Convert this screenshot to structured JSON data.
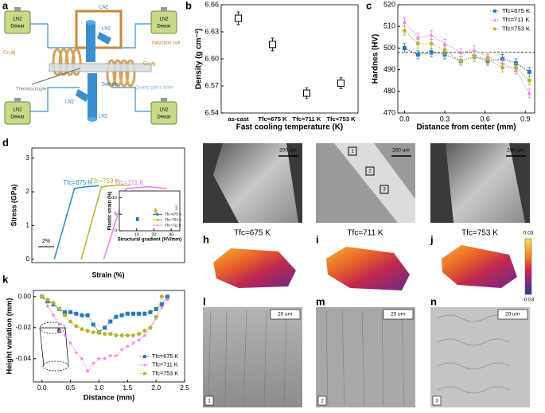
{
  "panel_labels": [
    "a",
    "b",
    "c",
    "d",
    "e",
    "f",
    "g",
    "h",
    "i",
    "j",
    "k",
    "l",
    "m",
    "n"
  ],
  "diagram": {
    "dewars": [
      {
        "top": "LN2",
        "bottom": "Dewar"
      },
      {
        "top": "LN2",
        "bottom": "Dewar"
      },
      {
        "top": "LN2",
        "bottom": "Dewar"
      },
      {
        "top": "LN2",
        "bottom": "Dewar"
      }
    ],
    "pipes": [
      "LN2",
      "LN2",
      "LN2",
      "LN2"
    ],
    "induction_coil": "Induction coil",
    "cu_jig": [
      "Cu jig",
      "Cu jig"
    ],
    "thermocouple": "Thermocouple",
    "sample": "Sample",
    "quartz_tube": "Quartz glass tube"
  },
  "micrographs": {
    "captions": [
      "Tfc=675 K",
      "Tfc=711 K",
      "Tfc=753 K"
    ],
    "scale_bars": [
      "200 um",
      "200 um",
      "200 um",
      "20 um",
      "20 um",
      "20 um"
    ],
    "regions": [
      "1",
      "2",
      "3"
    ],
    "region_tags": [
      "1",
      "2",
      "3"
    ],
    "colorbar_labels": [
      "0.03",
      "-0.03"
    ]
  },
  "chart_data": [
    {
      "type": "scatter",
      "categories": [
        "as-cast",
        "Tfc=675 K",
        "Tfc=711 K",
        "Tfc=753 K"
      ],
      "values": [
        6.645,
        6.616,
        6.562,
        6.573
      ],
      "errors": [
        0.007,
        0.007,
        0.006,
        0.006
      ],
      "marker": "open-square",
      "color": "#000000",
      "ylim": [
        6.54,
        6.66
      ],
      "yticks": [
        6.54,
        6.57,
        {
          "value": 6.6,
          "label": "6.60"
        },
        6.63,
        6.66
      ],
      "ylabel": "Density (g cm⁻³)",
      "xlabel": "Fast cooling temperature (K)"
    },
    {
      "type": "line",
      "line_style": "dotted",
      "legend": "upper right",
      "reference_line": 498,
      "xlim": [
        -0.05,
        0.97
      ],
      "ylim": [
        470,
        520
      ],
      "xticks": [
        {
          "value": 0,
          "label": "0.0"
        },
        0.3,
        0.6,
        0.9
      ],
      "yticks": [
        470,
        480,
        490,
        500,
        510,
        520
      ],
      "xlabel": "Distance from center (mm)",
      "ylabel": "Hardnes (HV)",
      "series": [
        {
          "name": "Tfc=675 K",
          "color": "#2a78b8",
          "marker": "square",
          "x": [
            0,
            0.1,
            0.2,
            0.3,
            0.42,
            0.52,
            0.62,
            0.73,
            0.83,
            0.93
          ],
          "values": [
            500,
            497,
            498,
            497,
            494,
            496,
            494,
            495,
            493,
            489
          ],
          "errors": [
            2,
            2,
            2,
            2,
            2,
            2,
            2,
            2,
            2,
            2
          ]
        },
        {
          "name": "Tfc=711 K",
          "color": "#f07cf0",
          "marker": "triangle",
          "x": [
            0,
            0.1,
            0.2,
            0.3,
            0.42,
            0.52,
            0.62,
            0.73,
            0.83,
            0.93
          ],
          "values": [
            512,
            505,
            506,
            502,
            498,
            499,
            496,
            493,
            490,
            479
          ],
          "errors": [
            2,
            2,
            2,
            2,
            2,
            2,
            2,
            2,
            2,
            2
          ]
        },
        {
          "name": "Tfc=753 K",
          "color": "#b5b52a",
          "marker": "circle",
          "x": [
            0,
            0.1,
            0.2,
            0.3,
            0.42,
            0.52,
            0.62,
            0.73,
            0.83,
            0.93
          ],
          "values": [
            508,
            502,
            502,
            499,
            494,
            496,
            495,
            491,
            491,
            485
          ],
          "errors": [
            2,
            2,
            2,
            2,
            2,
            2,
            2,
            2,
            2,
            2
          ]
        }
      ]
    },
    {
      "type": "line",
      "line_style": "solid",
      "legend": "inline",
      "scale_bar": "2%",
      "xlim": [
        0,
        34
      ],
      "ylim": [
        -0.1,
        3.3
      ],
      "xticks": [],
      "yticks": [
        0,
        1,
        2,
        3
      ],
      "xlabel": "Strain (%)",
      "ylabel": "Stress (GPa)",
      "series": [
        {
          "name": "Tfc=675 K",
          "color": "#1e8fc8",
          "marker": "none",
          "x": [
            5,
            9.5,
            12,
            15
          ],
          "values": [
            0,
            2.1,
            2.15,
            2.18
          ]
        },
        {
          "name": "Tfc=753 K",
          "color": "#b5b52a",
          "marker": "none",
          "x": [
            11,
            15.5,
            19,
            22
          ],
          "values": [
            0,
            2.15,
            2.2,
            2.2
          ]
        },
        {
          "name": "Tfc=711 K",
          "color": "#f07cf0",
          "marker": "none",
          "x": [
            16,
            21,
            26,
            30
          ],
          "values": [
            0,
            2.1,
            2.15,
            2.1
          ]
        }
      ]
    },
    {
      "type": "scatter",
      "legend": "lower right",
      "xlim": [
        0,
        35
      ],
      "ylim": [
        0,
        12
      ],
      "xticks": [
        10,
        20,
        30
      ],
      "yticks": [
        0,
        5,
        10
      ],
      "xlabel": "Structural gradient (HV/mm)",
      "ylabel": "Plastic strain (%)",
      "series": [
        {
          "name": "Tfc=675 K",
          "color": "#2a78b8",
          "marker": "square",
          "x": [
            10.5
          ],
          "values": [
            3.5
          ],
          "errors": [
            0.5
          ]
        },
        {
          "name": "Tfc=753 K",
          "color": "#b5b52a",
          "marker": "circle",
          "x": [
            21
          ],
          "values": [
            6
          ],
          "errors": [
            0.7
          ]
        },
        {
          "name": "Tfc=711 K",
          "color": "#f07cf0",
          "marker": "star",
          "x": [
            33
          ],
          "values": [
            7
          ],
          "errors": [
            0.6
          ]
        }
      ]
    },
    {
      "type": "line",
      "line_style": "dotted",
      "legend": "lower right",
      "annotation": "θ",
      "xlim": [
        -0.15,
        2.5
      ],
      "ylim": [
        -0.055,
        0.004
      ],
      "xticks": [
        {
          "value": 0,
          "label": "0.0"
        },
        0.5,
        {
          "value": 1,
          "label": "1.0"
        },
        1.5,
        {
          "value": 2,
          "label": "2.0"
        },
        2.5
      ],
      "yticks": [
        {
          "value": 0,
          "label": "0.00"
        },
        -0.02,
        -0.04
      ],
      "xlabel": "Distance (mm)",
      "ylabel": "Height variation (mm)",
      "series": [
        {
          "name": "Tfc=675 K",
          "color": "#2a78b8",
          "marker": "square",
          "x": [
            0,
            0.1,
            0.2,
            0.3,
            0.4,
            0.5,
            0.6,
            0.7,
            0.8,
            0.9,
            1.0,
            1.1,
            1.2,
            1.3,
            1.4,
            1.5,
            1.6,
            1.7,
            1.8,
            1.9,
            2.0,
            2.1,
            2.2
          ],
          "values": [
            0,
            -0.003,
            -0.005,
            -0.008,
            -0.01,
            -0.01,
            -0.011,
            -0.012,
            -0.012,
            -0.018,
            -0.023,
            -0.02,
            -0.016,
            -0.013,
            -0.012,
            -0.011,
            -0.011,
            -0.011,
            -0.011,
            -0.01,
            -0.008,
            -0.005,
            0
          ]
        },
        {
          "name": "Tfc=711 K",
          "color": "#f07cf0",
          "marker": "star",
          "x": [
            0,
            0.1,
            0.2,
            0.3,
            0.4,
            0.5,
            0.6,
            0.7,
            0.8,
            0.9,
            1.0,
            1.1,
            1.2,
            1.3,
            1.4,
            1.5,
            1.6,
            1.7,
            1.8,
            1.9,
            2.0,
            2.1,
            2.2
          ],
          "values": [
            0,
            -0.006,
            -0.012,
            -0.018,
            -0.025,
            -0.03,
            -0.036,
            -0.04,
            -0.048,
            -0.043,
            -0.04,
            -0.04,
            -0.038,
            -0.038,
            -0.034,
            -0.032,
            -0.03,
            -0.028,
            -0.025,
            -0.02,
            -0.014,
            -0.007,
            -0.002
          ]
        },
        {
          "name": "Tfc=753 K",
          "color": "#b5b52a",
          "marker": "circle",
          "x": [
            0,
            0.1,
            0.2,
            0.3,
            0.4,
            0.5,
            0.6,
            0.7,
            0.8,
            0.9,
            1.0,
            1.1,
            1.2,
            1.3,
            1.4,
            1.5,
            1.6,
            1.7,
            1.8,
            1.9,
            2.0,
            2.1
          ],
          "values": [
            0,
            -0.002,
            -0.004,
            -0.008,
            -0.012,
            -0.016,
            -0.019,
            -0.021,
            -0.022,
            -0.023,
            -0.023,
            -0.024,
            -0.024,
            -0.025,
            -0.025,
            -0.025,
            -0.025,
            -0.024,
            -0.022,
            -0.02,
            -0.013,
            0
          ]
        }
      ]
    }
  ]
}
